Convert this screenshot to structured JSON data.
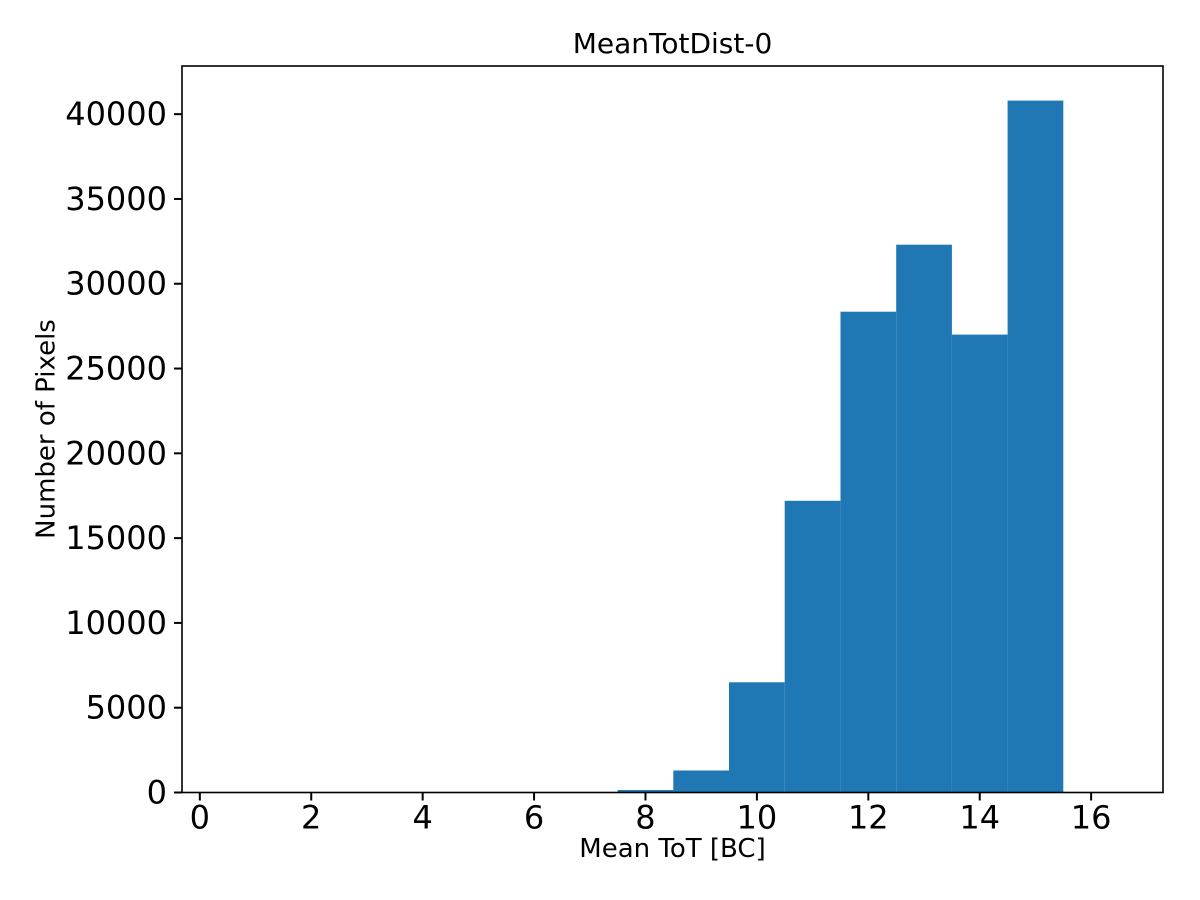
{
  "chart_data": {
    "type": "bar",
    "subtype": "histogram",
    "title": "MeanTotDist-0",
    "xlabel": "Mean ToT [BC]",
    "ylabel": "Number of Pixels",
    "bin_edges": [
      7.5,
      8.5,
      9.5,
      10.5,
      11.5,
      12.5,
      13.5,
      14.5,
      15.5
    ],
    "counts": [
      150,
      1300,
      6500,
      17200,
      28350,
      32300,
      27000,
      40800
    ],
    "xticks": [
      0,
      2,
      4,
      6,
      8,
      10,
      12,
      14,
      16
    ],
    "yticks": [
      0,
      5000,
      10000,
      15000,
      20000,
      25000,
      30000,
      35000,
      40000
    ],
    "xlim": [
      -0.32,
      17.29
    ],
    "ylim": [
      0,
      42840
    ],
    "bar_color": "#1f77b4",
    "axis_color": "#000000",
    "grid": false,
    "legend_position": "none"
  }
}
